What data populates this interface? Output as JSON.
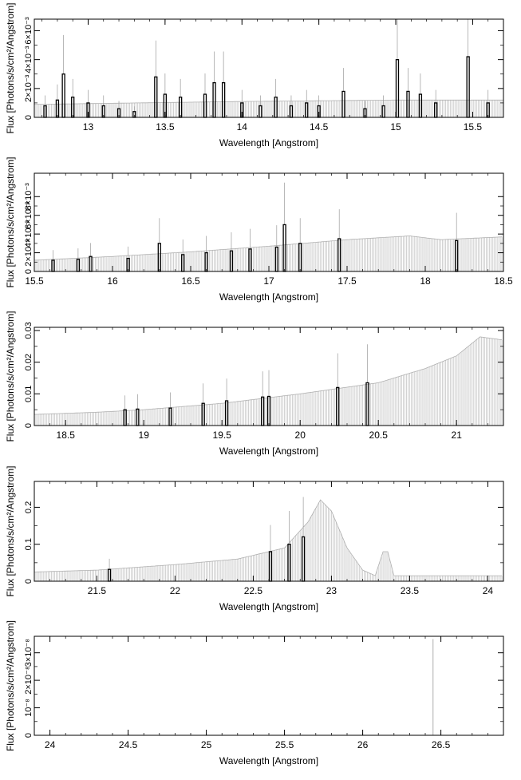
{
  "chart_data": [
    {
      "type": "bar",
      "xlabel": "Wavelength [Angstrom]",
      "ylabel": "Flux [Photons/s/cm²/Angstrom]",
      "xlim": [
        12.65,
        15.7
      ],
      "ylim": [
        0,
        0.0068
      ],
      "x_ticks": [
        13,
        13.5,
        14,
        14.5,
        15,
        15.5
      ],
      "x_tick_labels": [
        "13",
        "13.5",
        "14",
        "14.5",
        "15",
        "15.5"
      ],
      "y_ticks": [
        0,
        0.002,
        0.004,
        0.006
      ],
      "y_tick_labels": [
        "0",
        "2×10⁻³",
        "4×10⁻³",
        "6×10⁻³"
      ],
      "model_curve": [
        [
          12.65,
          0.0009
        ],
        [
          14.0,
          0.0011
        ],
        [
          15.0,
          0.0012
        ],
        [
          15.7,
          0.0012
        ]
      ],
      "data_bins": [
        [
          12.72,
          0.0008
        ],
        [
          12.8,
          0.0012
        ],
        [
          12.84,
          0.003
        ],
        [
          12.9,
          0.0014
        ],
        [
          13.0,
          0.001
        ],
        [
          13.1,
          0.0008
        ],
        [
          13.2,
          0.0006
        ],
        [
          13.3,
          0.0004
        ],
        [
          13.44,
          0.0028
        ],
        [
          13.5,
          0.0016
        ],
        [
          13.6,
          0.0014
        ],
        [
          13.76,
          0.0016
        ],
        [
          13.82,
          0.0024
        ],
        [
          13.88,
          0.0024
        ],
        [
          14.0,
          0.001
        ],
        [
          14.12,
          0.0008
        ],
        [
          14.22,
          0.0014
        ],
        [
          14.32,
          0.0008
        ],
        [
          14.42,
          0.001
        ],
        [
          14.5,
          0.0008
        ],
        [
          14.66,
          0.0018
        ],
        [
          14.8,
          0.0006
        ],
        [
          14.92,
          0.0008
        ],
        [
          15.01,
          0.004
        ],
        [
          15.08,
          0.0018
        ],
        [
          15.16,
          0.0016
        ],
        [
          15.26,
          0.001
        ],
        [
          15.47,
          0.0042
        ],
        [
          15.6,
          0.001
        ]
      ]
    },
    {
      "type": "bar",
      "xlabel": "Wavelength [Angstrom]",
      "ylabel": "Flux [Photons/s/cm²/Angstrom]",
      "xlim": [
        15.5,
        18.5
      ],
      "ylim": [
        0,
        0.0105
      ],
      "x_ticks": [
        15.5,
        16,
        16.5,
        17,
        17.5,
        18,
        18.5
      ],
      "x_tick_labels": [
        "15.5",
        "16",
        "16.5",
        "17",
        "17.5",
        "18",
        "18.5"
      ],
      "y_ticks": [
        0,
        0.002,
        0.004,
        0.006,
        0.008
      ],
      "y_tick_labels": [
        "0",
        "2×10⁻³",
        "4×10⁻³",
        "6×10⁻³",
        "8×10⁻³"
      ],
      "model_curve": [
        [
          15.5,
          0.0012
        ],
        [
          16.0,
          0.0016
        ],
        [
          16.5,
          0.0021
        ],
        [
          17.0,
          0.0027
        ],
        [
          17.5,
          0.0034
        ],
        [
          17.9,
          0.0038
        ],
        [
          18.0,
          0.0036
        ],
        [
          18.1,
          0.0034
        ],
        [
          18.5,
          0.0037
        ]
      ],
      "data_bins": [
        [
          15.62,
          0.0012
        ],
        [
          15.78,
          0.0013
        ],
        [
          15.86,
          0.0016
        ],
        [
          16.1,
          0.0014
        ],
        [
          16.3,
          0.003
        ],
        [
          16.45,
          0.0018
        ],
        [
          16.6,
          0.002
        ],
        [
          16.76,
          0.0022
        ],
        [
          16.88,
          0.0024
        ],
        [
          17.05,
          0.0026
        ],
        [
          17.1,
          0.005
        ],
        [
          17.2,
          0.003
        ],
        [
          17.45,
          0.0035
        ],
        [
          18.2,
          0.0033
        ]
      ]
    },
    {
      "type": "bar",
      "xlabel": "Wavelength [Angstrom]",
      "ylabel": "Flux [Photons/s/cm²/Angstrom]",
      "xlim": [
        18.3,
        21.3
      ],
      "ylim": [
        0,
        0.031
      ],
      "x_ticks": [
        18.5,
        19,
        19.5,
        20,
        20.5,
        21
      ],
      "x_tick_labels": [
        "18.5",
        "19",
        "19.5",
        "20",
        "20.5",
        "21"
      ],
      "y_ticks": [
        0,
        0.01,
        0.02,
        0.03
      ],
      "y_tick_labels": [
        "0",
        "0.01",
        "0.02",
        "0.03"
      ],
      "model_curve": [
        [
          18.3,
          0.0035
        ],
        [
          18.7,
          0.0042
        ],
        [
          19.0,
          0.005
        ],
        [
          19.5,
          0.007
        ],
        [
          20.0,
          0.01
        ],
        [
          20.5,
          0.0135
        ],
        [
          20.8,
          0.018
        ],
        [
          21.0,
          0.022
        ],
        [
          21.15,
          0.028
        ],
        [
          21.3,
          0.027
        ]
      ],
      "data_bins": [
        [
          18.88,
          0.005
        ],
        [
          18.96,
          0.0052
        ],
        [
          19.17,
          0.0055
        ],
        [
          19.38,
          0.007
        ],
        [
          19.53,
          0.0078
        ],
        [
          19.76,
          0.009
        ],
        [
          19.8,
          0.0092
        ],
        [
          20.24,
          0.012
        ],
        [
          20.43,
          0.0135
        ]
      ]
    },
    {
      "type": "bar",
      "xlabel": "Wavelength [Angstrom]",
      "ylabel": "Flux [Photons/s/cm²/Angstrom]",
      "xlim": [
        21.1,
        24.1
      ],
      "ylim": [
        0,
        0.27
      ],
      "x_ticks": [
        21.5,
        22,
        22.5,
        23,
        23.5,
        24
      ],
      "x_tick_labels": [
        "21.5",
        "22",
        "22.5",
        "23",
        "23.5",
        "24"
      ],
      "y_ticks": [
        0,
        0.1,
        0.2
      ],
      "y_tick_labels": [
        "0",
        "0.1",
        "0.2"
      ],
      "model_curve": [
        [
          21.1,
          0.025
        ],
        [
          21.5,
          0.03
        ],
        [
          22.0,
          0.045
        ],
        [
          22.4,
          0.06
        ],
        [
          22.7,
          0.09
        ],
        [
          22.85,
          0.16
        ],
        [
          22.93,
          0.22
        ],
        [
          23.0,
          0.19
        ],
        [
          23.1,
          0.09
        ],
        [
          23.2,
          0.03
        ],
        [
          23.28,
          0.015
        ],
        [
          23.33,
          0.08
        ],
        [
          23.36,
          0.08
        ],
        [
          23.4,
          0.015
        ],
        [
          24.1,
          0.015
        ]
      ],
      "data_bins": [
        [
          21.58,
          0.032
        ],
        [
          22.61,
          0.08
        ],
        [
          22.73,
          0.1
        ],
        [
          22.82,
          0.12
        ]
      ]
    },
    {
      "type": "bar",
      "xlabel": "Wavelength [Angstrom]",
      "ylabel": "Flux [Photons/s/cm²/Angstrom]",
      "xlim": [
        23.9,
        26.9
      ],
      "ylim": [
        0,
        3.6e-08
      ],
      "x_ticks": [
        24,
        24.5,
        25,
        25.5,
        26,
        26.5
      ],
      "x_tick_labels": [
        "24",
        "24.5",
        "25",
        "25.5",
        "26",
        "26.5"
      ],
      "y_ticks": [
        0,
        1e-08,
        2e-08,
        3e-08
      ],
      "y_tick_labels": [
        "0",
        "10⁻⁸",
        "2×10⁻⁸",
        "3×10⁻⁸"
      ],
      "model_curve": [],
      "data_bins": [],
      "spike": [
        26.45,
        3.5e-08
      ]
    }
  ]
}
